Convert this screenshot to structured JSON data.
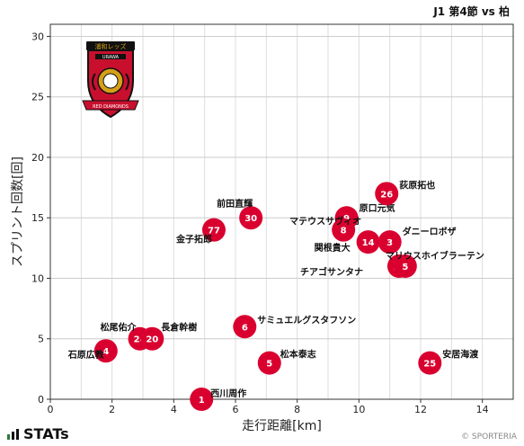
{
  "header": {
    "title": "J1 第4節 vs 柏"
  },
  "footer": {
    "brand": "STATs",
    "credit": "© SPORTERIA"
  },
  "logo": {
    "top": "浦和レッズ",
    "label": "URAWA",
    "bottom": "RED DIAMONDS",
    "colors": {
      "red": "#c8102e",
      "black": "#111111",
      "gold": "#d4a017"
    }
  },
  "chart_data": {
    "type": "scatter",
    "xlabel": "走行距離[km]",
    "ylabel": "スプリント回数[回]",
    "xlim": [
      0,
      15
    ],
    "ylim": [
      0,
      31
    ],
    "xticks": [
      0,
      2,
      4,
      6,
      8,
      10,
      12,
      14
    ],
    "yticks": [
      0,
      5,
      10,
      15,
      20,
      25,
      30
    ],
    "grid": true,
    "marker_color": "#d9002f",
    "points": [
      {
        "num": "1",
        "name": "西川周作",
        "x": 4.9,
        "y": 0
      },
      {
        "num": "4",
        "name": "石原広教",
        "x": 1.8,
        "y": 4
      },
      {
        "num": "24",
        "name": "松尾佑介",
        "x": 2.9,
        "y": 5
      },
      {
        "num": "20",
        "name": "長倉幹樹",
        "x": 3.3,
        "y": 5
      },
      {
        "num": "6",
        "name": "サミュエルグスタフソン",
        "x": 6.3,
        "y": 6
      },
      {
        "num": "5",
        "name": "松本泰志",
        "x": 7.1,
        "y": 3
      },
      {
        "num": "25",
        "name": "安居海渡",
        "x": 12.3,
        "y": 3
      },
      {
        "num": "77",
        "name": "金子拓郎",
        "x": 5.3,
        "y": 14
      },
      {
        "num": "30",
        "name": "前田直輝",
        "x": 6.5,
        "y": 15
      },
      {
        "num": "9",
        "name": "原口元気",
        "x": 9.6,
        "y": 15
      },
      {
        "num": "8",
        "name": "マテウスサヴィオ",
        "x": 9.5,
        "y": 14
      },
      {
        "num": "14",
        "name": "関根貴大",
        "x": 10.3,
        "y": 13
      },
      {
        "num": "3",
        "name": "ダニーロボザ",
        "x": 11.0,
        "y": 13
      },
      {
        "num": "26",
        "name": "荻原拓也",
        "x": 10.9,
        "y": 17
      },
      {
        "num": "13",
        "name": "チアゴサンタナ",
        "x": 11.3,
        "y": 11
      },
      {
        "num": "5",
        "name": "マリウスホイブラーテン",
        "x": 11.5,
        "y": 11
      }
    ]
  }
}
